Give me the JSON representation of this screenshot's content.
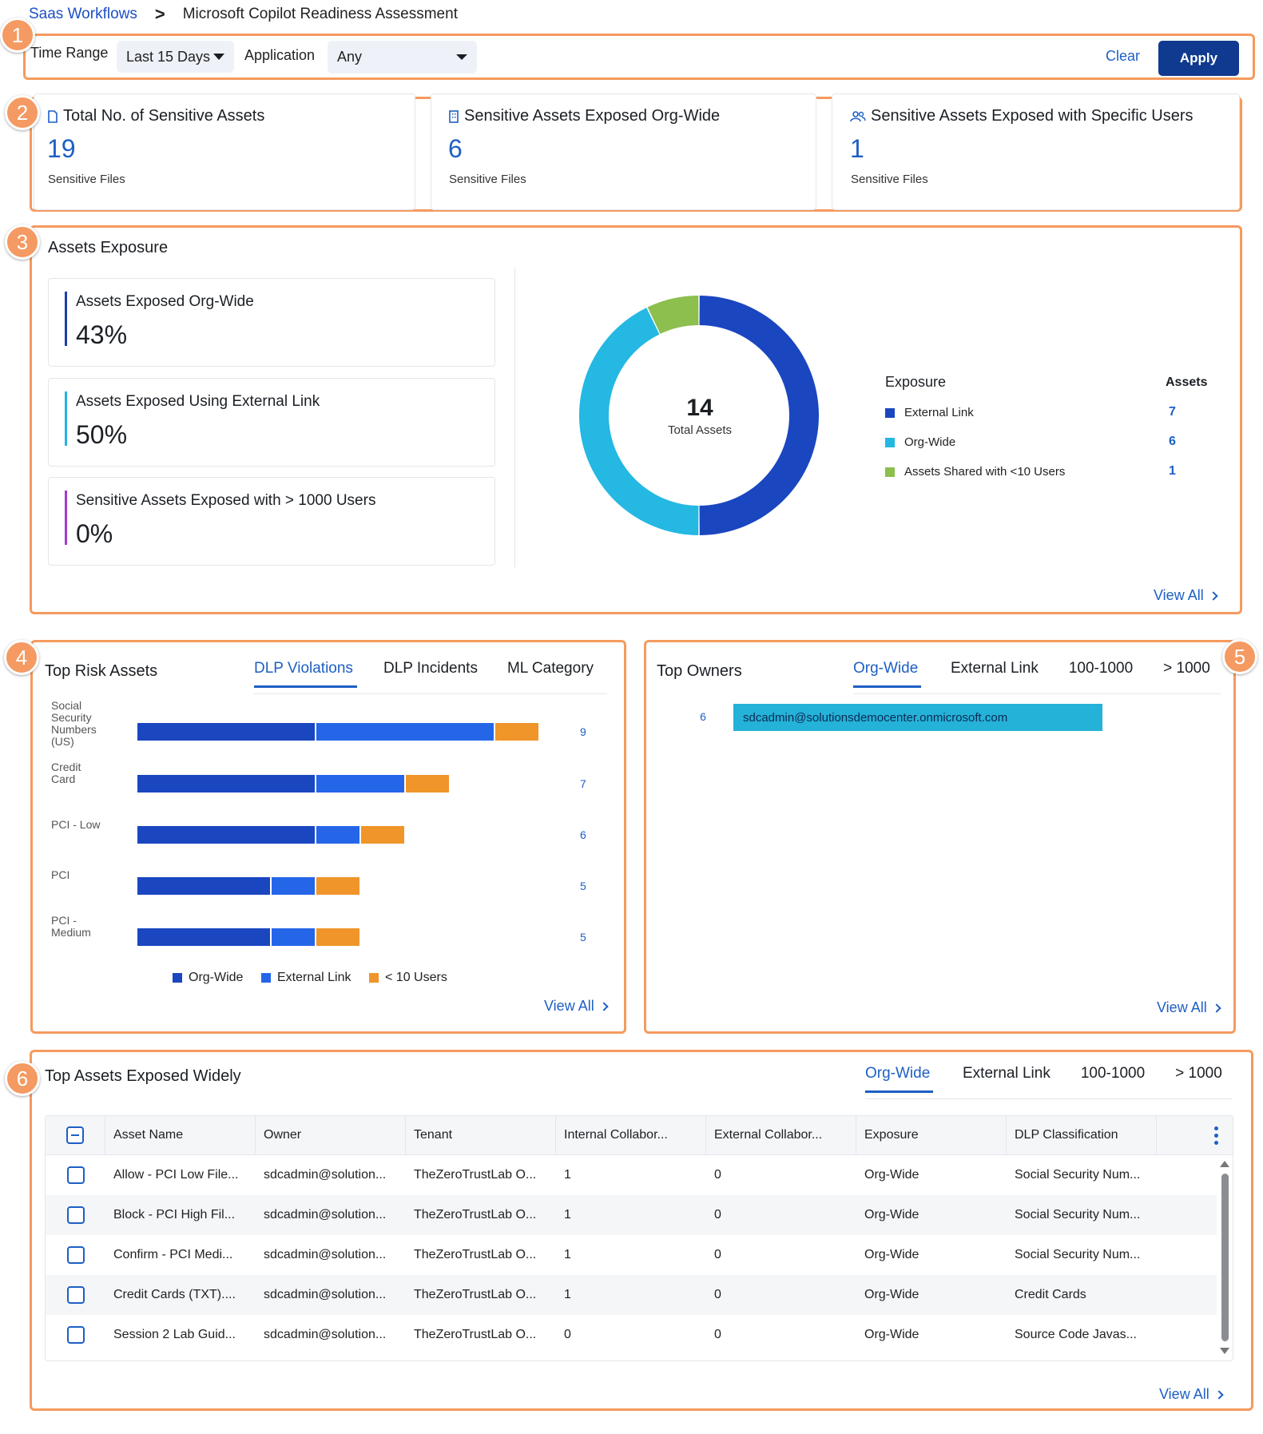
{
  "breadcrumb": {
    "parent": "Saas Workflows",
    "separator": ">",
    "current": "Microsoft Copilot Readiness Assessment"
  },
  "callouts": [
    "1",
    "2",
    "3",
    "4",
    "5",
    "6"
  ],
  "filters": {
    "time_range_label": "Time Range",
    "time_range_value": "Last 15 Days",
    "application_label": "Application",
    "application_value": "Any",
    "clear_label": "Clear",
    "apply_label": "Apply"
  },
  "summary": [
    {
      "title": "Total No. of Sensitive Assets",
      "value": "19",
      "sub": "Sensitive Files",
      "icon": "file-icon"
    },
    {
      "title": "Sensitive Assets Exposed Org-Wide",
      "value": "6",
      "sub": "Sensitive Files",
      "icon": "building-icon"
    },
    {
      "title": "Sensitive Assets Exposed with Specific Users",
      "value": "1",
      "sub": "Sensitive Files",
      "icon": "users-icon"
    }
  ],
  "assets_exposure": {
    "title": "Assets Exposure",
    "kpis": [
      {
        "label": "Assets Exposed Org-Wide",
        "value": "43%",
        "color": "#1a3fa8"
      },
      {
        "label": "Assets Exposed Using External Link",
        "value": "50%",
        "color": "#27b3e0"
      },
      {
        "label": "Sensitive Assets Exposed with > 1000 Users",
        "value": "0%",
        "color": "#a23ccf"
      }
    ],
    "donut": {
      "total": "14",
      "total_label": "Total Assets"
    },
    "legend": {
      "col1": "Exposure",
      "col2": "Assets",
      "rows": [
        {
          "label": "External Link",
          "count": "7",
          "color": "#1a46c0"
        },
        {
          "label": "Org-Wide",
          "count": "6",
          "color": "#24b8e3"
        },
        {
          "label": "Assets Shared with <10 Users",
          "count": "1",
          "color": "#8cbf4e"
        }
      ]
    },
    "view_all": "View All"
  },
  "chart_data": [
    {
      "type": "pie",
      "title": "",
      "center_value": "14",
      "center_label": "Total Assets",
      "categories": [
        "External Link",
        "Org-Wide",
        "Assets Shared with <10 Users"
      ],
      "values": [
        7,
        6,
        1
      ],
      "colors": [
        "#1a46c0",
        "#24b8e3",
        "#8cbf4e"
      ]
    },
    {
      "type": "bar",
      "orientation": "horizontal",
      "stacked": true,
      "categories": [
        "Social Security Numbers (US)",
        "Credit Card",
        "PCI - Low",
        "PCI",
        "PCI - Medium"
      ],
      "totals": [
        9,
        7,
        6,
        5,
        5
      ],
      "series": [
        {
          "name": "Org-Wide",
          "values": [
            4,
            4,
            4,
            3,
            3
          ],
          "color": "#1a46c0"
        },
        {
          "name": "External Link",
          "values": [
            4,
            2,
            1,
            1,
            1
          ],
          "color": "#2566e8"
        },
        {
          "name": "< 10 Users",
          "values": [
            1,
            1,
            1,
            1,
            1
          ],
          "color": "#f0952a"
        }
      ],
      "xlim": [
        0,
        9
      ]
    },
    {
      "type": "bar",
      "orientation": "horizontal",
      "categories": [
        "sdcadmin@solutionsdemocenter.onmicrosoft.com"
      ],
      "values": [
        6
      ],
      "colors": [
        "#24b2d8"
      ]
    }
  ],
  "top_risk": {
    "title": "Top Risk Assets",
    "tabs": [
      "DLP Violations",
      "DLP Incidents",
      "ML Category"
    ],
    "active_tab": 0,
    "row_labels": [
      [
        "Social",
        "Security",
        "Numbers",
        "(US)"
      ],
      [
        "Credit",
        "Card"
      ],
      [
        "PCI - Low"
      ],
      [
        "PCI"
      ],
      [
        "PCI -",
        "Medium"
      ]
    ],
    "legend": [
      "Org-Wide",
      "External Link",
      "< 10 Users"
    ],
    "view_all": "View All"
  },
  "top_owners": {
    "title": "Top Owners",
    "tabs": [
      "Org-Wide",
      "External Link",
      "100-1000",
      "> 1000"
    ],
    "active_tab": 0,
    "view_all": "View All"
  },
  "top_assets": {
    "title": "Top Assets Exposed Widely",
    "tabs": [
      "Org-Wide",
      "External Link",
      "100-1000",
      "> 1000"
    ],
    "active_tab": 0,
    "columns": [
      "Asset Name",
      "Owner",
      "Tenant",
      "Internal Collabor...",
      "External Collabor...",
      "Exposure",
      "DLP Classification"
    ],
    "rows": [
      [
        "Allow - PCI Low File...",
        "sdcadmin@solution...",
        "TheZeroTrustLab O...",
        "1",
        "0",
        "Org-Wide",
        "Social Security Num..."
      ],
      [
        "Block - PCI High Fil...",
        "sdcadmin@solution...",
        "TheZeroTrustLab O...",
        "1",
        "0",
        "Org-Wide",
        "Social Security Num..."
      ],
      [
        "Confirm - PCI Medi...",
        "sdcadmin@solution...",
        "TheZeroTrustLab O...",
        "1",
        "0",
        "Org-Wide",
        "Social Security Num..."
      ],
      [
        "Credit Cards (TXT)....",
        "sdcadmin@solution...",
        "TheZeroTrustLab O...",
        "1",
        "0",
        "Org-Wide",
        "Credit Cards"
      ],
      [
        "Session 2 Lab Guid...",
        "sdcadmin@solution...",
        "TheZeroTrustLab O...",
        "0",
        "0",
        "Org-Wide",
        "Source Code Javas..."
      ]
    ],
    "view_all": "View All"
  }
}
